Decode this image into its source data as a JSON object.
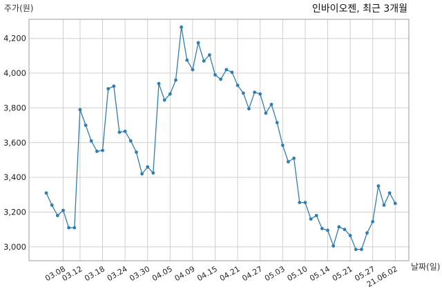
{
  "chart_data": {
    "type": "line",
    "title": "인바이오젠, 최근 3개월",
    "ylabel": "주가(원)",
    "xlabel": "날짜(일)",
    "ylim": [
      2920,
      4310
    ],
    "yticks": [
      3000,
      3200,
      3400,
      3600,
      3800,
      4000,
      4200
    ],
    "ytick_labels": [
      "3,000",
      "3,200",
      "3,400",
      "3,600",
      "3,800",
      "4,000",
      "4,200"
    ],
    "xtick_labels": [
      "03.08",
      "03.12",
      "03.18",
      "03.24",
      "03.30",
      "04.05",
      "04.09",
      "04.15",
      "04.21",
      "04.27",
      "05.03",
      "05.10",
      "05.14",
      "05.21",
      "05.27",
      "21.06.02"
    ],
    "xtick_index": [
      3,
      6,
      10,
      14,
      18,
      22,
      26,
      30,
      34,
      38,
      42,
      46,
      50,
      54,
      58,
      62
    ],
    "grid": true,
    "series": [
      {
        "values": [
          3310,
          3240,
          3180,
          3210,
          3110,
          3110,
          3790,
          3700,
          3610,
          3550,
          3555,
          3910,
          3925,
          3660,
          3665,
          3610,
          3545,
          3420,
          3460,
          3425,
          3940,
          3845,
          3880,
          3960,
          4265,
          4075,
          4020,
          4175,
          4070,
          4105,
          3990,
          3965,
          4020,
          4005,
          3930,
          3885,
          3795,
          3890,
          3880,
          3770,
          3820,
          3715,
          3585,
          3490,
          3510,
          3255,
          3255,
          3160,
          3180,
          3105,
          3095,
          3005,
          3115,
          3100,
          3065,
          2985,
          2985,
          3080,
          3145,
          3350,
          3240,
          3310,
          3250
        ]
      }
    ],
    "colors": {
      "line": "#2e7db1",
      "grid": "#cfcfcf"
    }
  }
}
